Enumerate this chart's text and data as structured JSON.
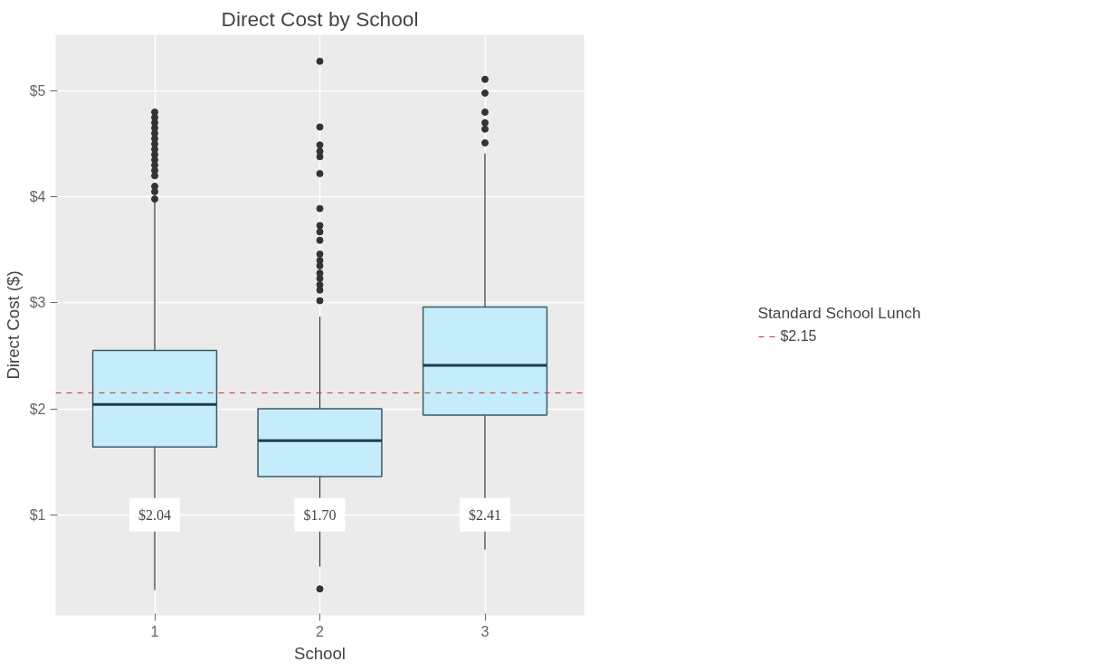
{
  "chart_data": {
    "type": "box",
    "title": "Direct Cost by School",
    "xlabel": "School",
    "ylabel": "Direct Cost ($)",
    "legend_title": "Standard School Lunch",
    "categories": [
      "1",
      "2",
      "3"
    ],
    "series": [
      {
        "color": "#c4ecfa",
        "boxes": [
          {
            "low": 0.29,
            "q1": 1.64,
            "median": 2.04,
            "q3": 2.55,
            "high": 3.96,
            "outliers": [
              3.98,
              4.05,
              4.1,
              4.2,
              4.25,
              4.3,
              4.35,
              4.4,
              4.45,
              4.5,
              4.55,
              4.6,
              4.65,
              4.7,
              4.75,
              4.8
            ]
          },
          {
            "low": 0.51,
            "q1": 1.36,
            "median": 1.7,
            "q3": 2.0,
            "high": 2.87,
            "outliers": [
              0.3,
              3.02,
              3.12,
              3.17,
              3.23,
              3.28,
              3.35,
              3.4,
              3.46,
              3.59,
              3.67,
              3.73,
              3.89,
              4.22,
              4.38,
              4.43,
              4.49,
              4.66,
              5.28
            ]
          },
          {
            "low": 0.67,
            "q1": 1.94,
            "median": 2.41,
            "q3": 2.96,
            "high": 4.41,
            "outliers": [
              4.51,
              4.64,
              4.7,
              4.8,
              4.98,
              5.11
            ]
          }
        ]
      }
    ],
    "ylim": [
      0.05,
      5.53
    ],
    "yticks": [
      {
        "value": 1,
        "label": "$1"
      },
      {
        "value": 2,
        "label": "$2"
      },
      {
        "value": 3,
        "label": "$3"
      },
      {
        "value": 4,
        "label": "$4"
      },
      {
        "value": 5,
        "label": "$5"
      }
    ],
    "ref_lines": [
      {
        "axis": "y",
        "value": 2.15,
        "label": "$2.15",
        "color": "#cc3333",
        "line_style": "dashed"
      }
    ],
    "annotations": [
      {
        "text": "$2.04",
        "x": "1",
        "y": 1
      },
      {
        "text": "$1.70",
        "x": "2",
        "y": 1
      },
      {
        "text": "$2.41",
        "x": "3",
        "y": 1
      }
    ],
    "grid": true,
    "legend": "right"
  }
}
